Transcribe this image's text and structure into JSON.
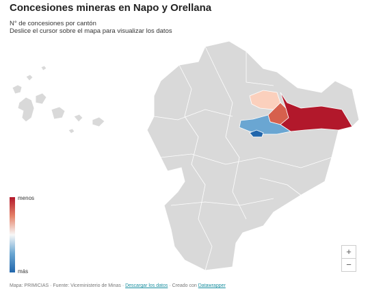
{
  "header": {
    "title": "Concesiones mineras en Napo y Orellana",
    "subtitle": [
      "N° de concesiones por cantón",
      "Deslice el cursor sobre el mapa para visualizar los datos"
    ]
  },
  "legend": {
    "top": "menos",
    "bottom": "más"
  },
  "zoom": {
    "in": "+",
    "out": "−"
  },
  "footer": {
    "source": "Mapa: PRIMICIAS · Fuente: Viceministerio de Minas ·",
    "download": "Descargar los datos",
    "credit_prefix": "· Creado con",
    "credit": "Datawrapper"
  }
}
